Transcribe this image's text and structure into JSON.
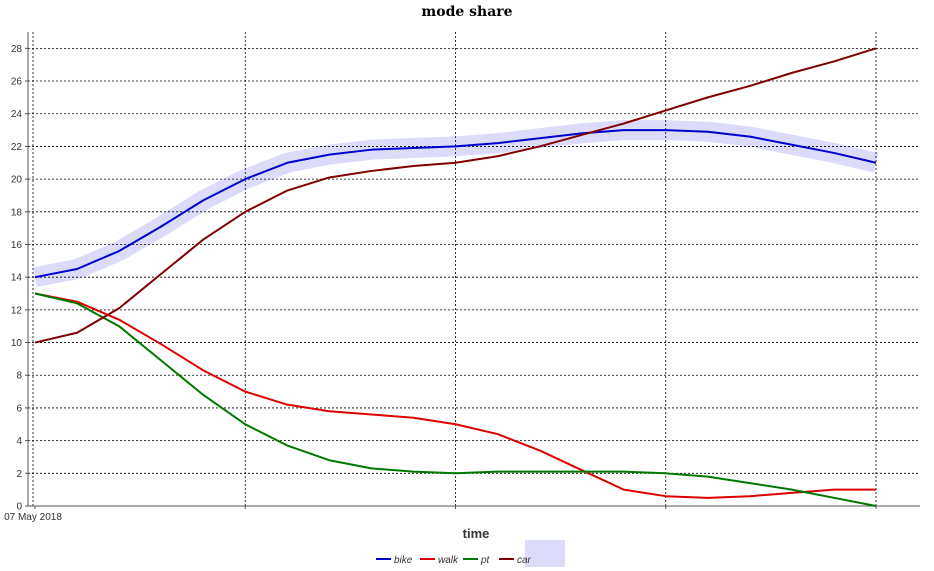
{
  "chart_data": {
    "type": "line",
    "title": "mode share",
    "xlabel": "time",
    "ylabel": "",
    "x_tick_labels": [
      "07 May 2018"
    ],
    "ylim": [
      0,
      29
    ],
    "y_ticks": [
      0,
      2,
      4,
      6,
      8,
      10,
      12,
      14,
      16,
      18,
      20,
      22,
      24,
      26,
      28
    ],
    "x_range": [
      -0.1,
      20.5
    ],
    "x": [
      0,
      1,
      2,
      3,
      4,
      5,
      6,
      7,
      8,
      9,
      10,
      11,
      12,
      13,
      14,
      15,
      16,
      17,
      18,
      19,
      20
    ],
    "grid": true,
    "legend_position": "bottom",
    "series": [
      {
        "name": "bike",
        "color": "#0000cc",
        "values": [
          14.0,
          14.5,
          15.6,
          17.1,
          18.7,
          20.0,
          21.0,
          21.5,
          21.8,
          21.9,
          22.0,
          22.2,
          22.5,
          22.8,
          23.0,
          23.0,
          22.9,
          22.6,
          22.1,
          21.6,
          21.0
        ]
      },
      {
        "name": "walk",
        "color": "#dd0000",
        "values": [
          13.0,
          12.5,
          11.4,
          9.9,
          8.3,
          7.0,
          6.2,
          5.8,
          5.6,
          5.4,
          5.0,
          4.4,
          3.4,
          2.2,
          1.0,
          0.6,
          0.5,
          0.6,
          0.8,
          1.0,
          1.0
        ]
      },
      {
        "name": "pt",
        "color": "#007700",
        "values": [
          13.0,
          12.4,
          11.0,
          8.9,
          6.8,
          5.0,
          3.7,
          2.8,
          2.3,
          2.1,
          2.0,
          2.1,
          2.1,
          2.1,
          2.1,
          2.0,
          1.8,
          1.4,
          1.0,
          0.5,
          0.0
        ]
      },
      {
        "name": "car",
        "color": "#800000",
        "values": [
          10.0,
          10.6,
          12.1,
          14.2,
          16.3,
          18.0,
          19.3,
          20.1,
          20.5,
          20.8,
          21.0,
          21.4,
          22.0,
          22.7,
          23.4,
          24.2,
          25.0,
          25.7,
          26.5,
          27.2,
          28.0
        ]
      }
    ],
    "band": {
      "series": "bike",
      "color": "#dcdcfa"
    }
  }
}
